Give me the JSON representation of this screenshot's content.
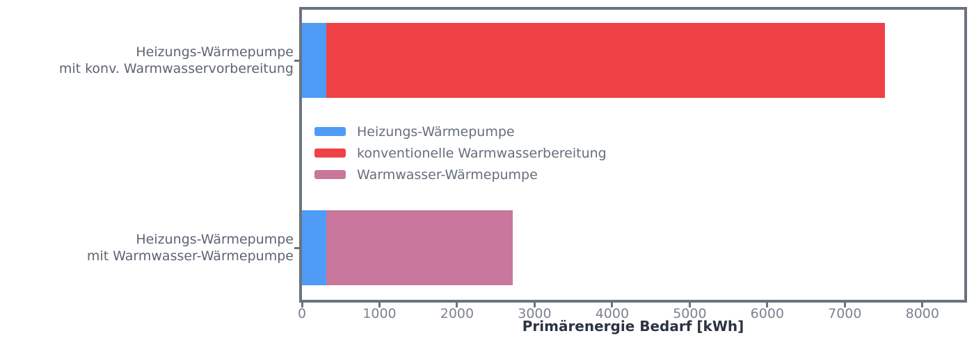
{
  "figure": {
    "background": "#ffffff",
    "frame_color": "#6b7280",
    "tick_label_color": "#7b8290",
    "category_label_color": "#5d6472",
    "legend_label_color": "#666e7c",
    "axis_label_color": "#2b3342"
  },
  "chart_data": {
    "type": "bar",
    "orientation": "horizontal",
    "stacked": true,
    "title": "",
    "xlabel": "Primärenergie Bedarf [kWh]",
    "ylabel": "",
    "categories": [
      "Heizungs-Wärmepumpe\nmit konv. Warmwasservorbereitung",
      "Heizungs-Wärmepumpe\nmit Warmwasser-Wärmepumpe"
    ],
    "series": [
      {
        "name": "Heizungs-Wärmepumpe",
        "color": "#4e9cf5",
        "values": [
          310,
          310
        ]
      },
      {
        "name": "konventionelle Warmwasserbereitung",
        "color": "#ef4146",
        "values": [
          7210,
          0
        ]
      },
      {
        "name": "Warmwasser-Wärmepumpe",
        "color": "#c9779c",
        "values": [
          0,
          2410
        ]
      }
    ],
    "category_totals": [
      7520,
      2720
    ],
    "xticks": [
      0,
      1000,
      2000,
      3000,
      4000,
      5000,
      6000,
      7000,
      8000
    ],
    "xlim": [
      0,
      8540
    ],
    "grid": false,
    "legend_position": "inside-center-left"
  }
}
